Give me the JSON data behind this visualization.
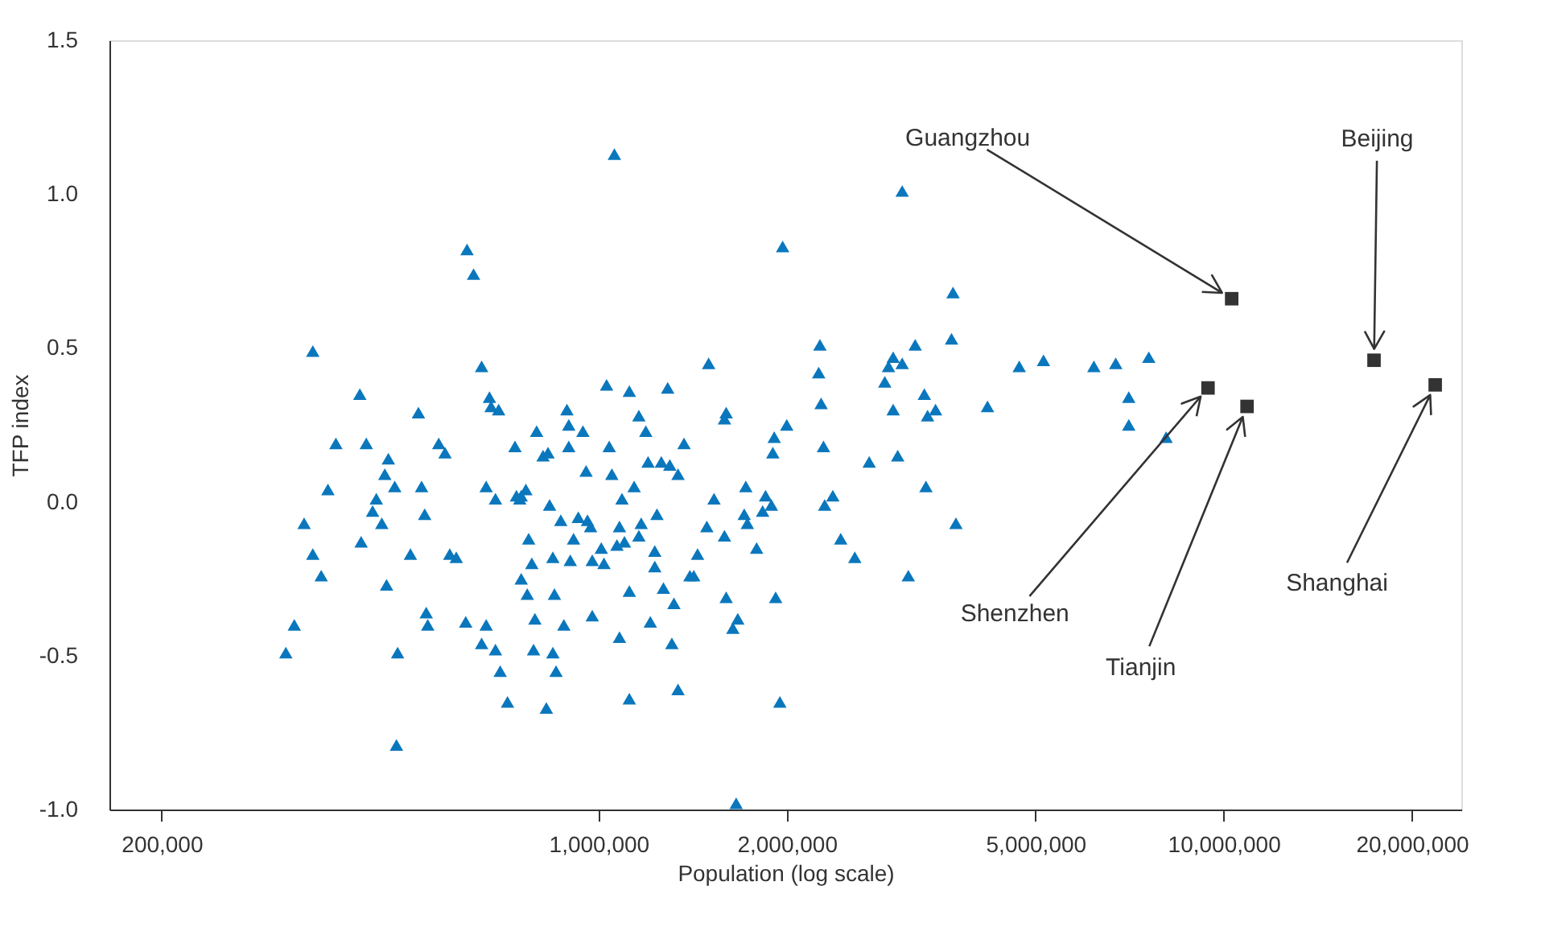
{
  "chart_data": {
    "type": "scatter",
    "xlabel": "Population (log scale)",
    "ylabel": "TFP index",
    "log": "x",
    "xlim": [
      165000,
      24000000
    ],
    "ylim": [
      -1.0,
      1.5
    ],
    "xticks": [
      {
        "value": 200000,
        "label": "200,000"
      },
      {
        "value": 1000000,
        "label": "1,000,000"
      },
      {
        "value": 2000000,
        "label": "2,000,000"
      },
      {
        "value": 5000000,
        "label": "5,000,000"
      },
      {
        "value": 10000000,
        "label": "10,000,000"
      },
      {
        "value": 20000000,
        "label": "20,000,000"
      }
    ],
    "yticks": [
      {
        "value": -1,
        "label": "-1.0"
      },
      {
        "value": -0.5,
        "label": "-0.5"
      },
      {
        "value": 0,
        "label": "0.0"
      },
      {
        "value": 0.5,
        "label": "0.5"
      },
      {
        "value": 1,
        "label": "1.0"
      },
      {
        "value": 1.5,
        "label": "1.5"
      }
    ],
    "grid": false,
    "legend": false,
    "series": [
      {
        "color": "#0a77bd",
        "marker": "triangle",
        "x": [
          316000,
          326000,
          338000,
          349000,
          349000,
          360000,
          369000,
          380000,
          415000,
          425000,
          417000,
          435000,
          441000,
          455000,
          450000,
          458000,
          461000,
          472000,
          477000,
          475000,
          500000,
          515000,
          521000,
          527000,
          530000,
          533000,
          555000,
          568000,
          578000,
          592000,
          616000,
          631000,
          613000,
          650000,
          661000,
          669000,
          673000,
          661000,
          650000,
          684000,
          696000,
          692000,
          684000,
          715000,
          735000,
          739000,
          748000,
          765000,
          752000,
          773000,
          782000,
          752000,
          769000,
          787000,
          791000,
          796000,
          815000,
          830000,
          825000,
          845000,
          835000,
          850000,
          845000,
          855000,
          870000,
          890000,
          896000,
          896000,
          880000,
          901000,
          928000,
          912000,
          944000,
          955000,
          960000,
          971000,
          977000,
          977000,
          1010000,
          1020000,
          1030000,
          1040000,
          1050000,
          1060000,
          1070000,
          1090000,
          1080000,
          1100000,
          1080000,
          1120000,
          1120000,
          1120000,
          1140000,
          1160000,
          1170000,
          1160000,
          1190000,
          1200000,
          1210000,
          1230000,
          1230000,
          1240000,
          1260000,
          1270000,
          1290000,
          1300000,
          1320000,
          1310000,
          1340000,
          1340000,
          1370000,
          1400000,
          1420000,
          1440000,
          1490000,
          1500000,
          1530000,
          1590000,
          1590000,
          1600000,
          1600000,
          1640000,
          1670000,
          1660000,
          1710000,
          1720000,
          1730000,
          1790000,
          1830000,
          1850000,
          1890000,
          1900000,
          1910000,
          1920000,
          1970000,
          1950000,
          2000000,
          2250000,
          2260000,
          2270000,
          2290000,
          2300000,
          2370000,
          2440000,
          2570000,
          2710000,
          2870000,
          2910000,
          2960000,
          3010000,
          3060000,
          2960000,
          3060000,
          3130000,
          3210000,
          3320000,
          3360000,
          3340000,
          3460000,
          3670000,
          3690000,
          3730000,
          4190000,
          4710000,
          5150000,
          6200000,
          6720000,
          7050000,
          7050000,
          7590000,
          8090000
        ],
        "values": [
          -0.49,
          -0.4,
          -0.07,
          -0.17,
          0.49,
          -0.24,
          0.04,
          0.19,
          0.35,
          0.19,
          -0.13,
          -0.03,
          0.01,
          0.09,
          -0.07,
          -0.27,
          0.14,
          0.05,
          -0.49,
          -0.79,
          -0.17,
          0.29,
          0.05,
          -0.04,
          -0.36,
          -0.4,
          0.19,
          0.16,
          -0.17,
          -0.18,
          0.82,
          0.74,
          -0.39,
          0.44,
          0.05,
          0.34,
          0.31,
          -0.4,
          -0.46,
          -0.48,
          -0.55,
          0.3,
          0.01,
          -0.65,
          0.18,
          0.02,
          0.01,
          0.04,
          0.02,
          -0.12,
          -0.2,
          -0.25,
          -0.3,
          -0.48,
          -0.38,
          0.23,
          0.15,
          0.16,
          -0.67,
          -0.18,
          -0.01,
          -0.3,
          -0.49,
          -0.55,
          -0.06,
          0.3,
          0.25,
          0.18,
          -0.4,
          -0.19,
          -0.05,
          -0.12,
          0.23,
          0.1,
          -0.06,
          -0.08,
          -0.37,
          -0.19,
          -0.15,
          -0.2,
          0.38,
          0.18,
          0.09,
          1.13,
          -0.14,
          0.01,
          -0.08,
          -0.13,
          -0.44,
          0.36,
          -0.29,
          -0.64,
          0.05,
          -0.11,
          -0.07,
          0.28,
          0.23,
          0.13,
          -0.39,
          -0.16,
          -0.21,
          -0.04,
          0.13,
          -0.28,
          0.37,
          0.12,
          -0.33,
          -0.46,
          0.09,
          -0.61,
          0.19,
          -0.24,
          -0.24,
          -0.17,
          -0.08,
          0.45,
          0.01,
          0.27,
          -0.11,
          0.29,
          -0.31,
          -0.41,
          -0.38,
          -0.98,
          -0.04,
          0.05,
          -0.07,
          -0.15,
          -0.03,
          0.02,
          -0.01,
          0.16,
          0.21,
          -0.31,
          0.83,
          -0.65,
          0.25,
          0.42,
          0.51,
          0.32,
          0.18,
          -0.01,
          0.02,
          -0.12,
          -0.18,
          0.13,
          0.39,
          0.44,
          0.3,
          0.15,
          1.01,
          0.47,
          0.45,
          -0.24,
          0.51,
          0.35,
          0.28,
          0.05,
          0.3,
          0.53,
          0.68,
          -0.07,
          0.31,
          0.44,
          0.46,
          0.44,
          0.45,
          0.34,
          0.25,
          0.47,
          0.21
        ]
      },
      {
        "color": "#333333",
        "marker": "square",
        "x": [
          10300000,
          17400000,
          21800000,
          9440000,
          10900000
        ],
        "values": [
          0.66,
          0.46,
          0.38,
          0.37,
          0.31
        ]
      }
    ],
    "annotations": [
      "Guangzhou",
      "Beijing",
      "Shanghai",
      "Shenzhen",
      "Tianjin"
    ]
  }
}
